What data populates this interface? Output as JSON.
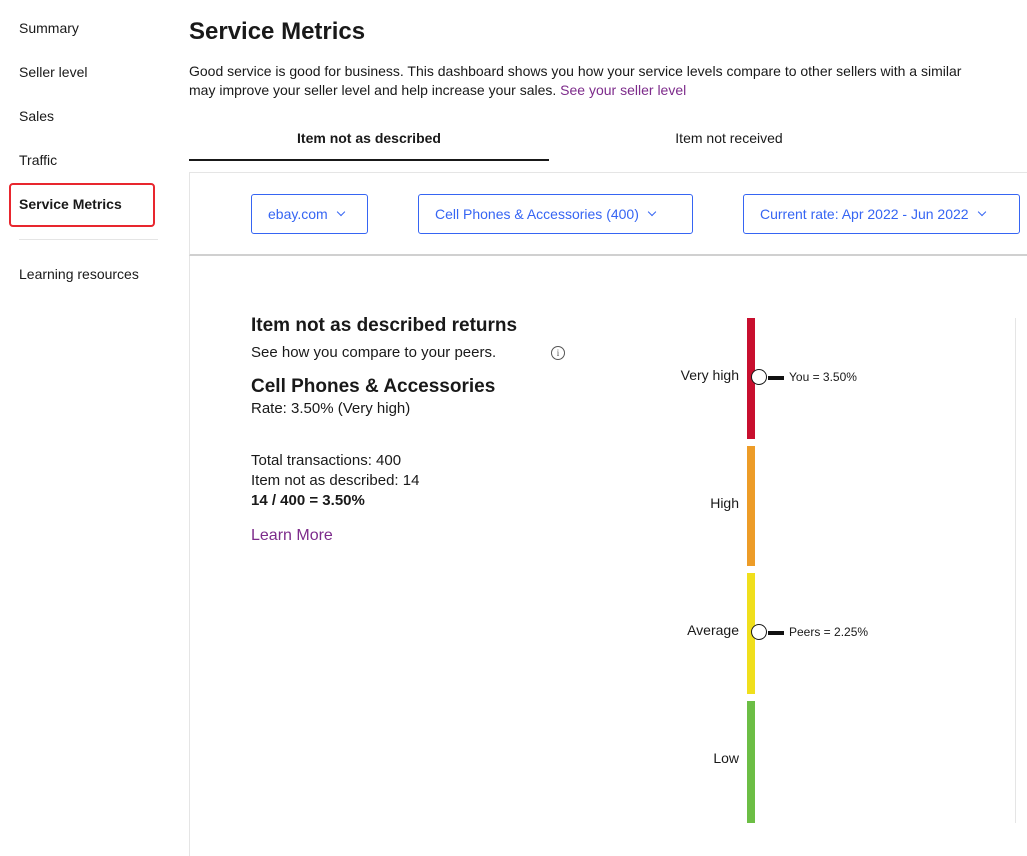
{
  "sidebar": {
    "items": [
      {
        "label": "Summary"
      },
      {
        "label": "Seller level"
      },
      {
        "label": "Sales"
      },
      {
        "label": "Traffic"
      },
      {
        "label": "Service Metrics",
        "active": true
      },
      {
        "label": "Learning resources"
      }
    ]
  },
  "header": {
    "title": "Service Metrics",
    "intro_line1": "Good service is good for business. This dashboard shows you how your service levels compare to other sellers with a similar",
    "intro_line2": "may improve your seller level and help increase your sales.",
    "intro_link": "See your seller level"
  },
  "tabs": [
    {
      "label": "Item not as described",
      "active": true
    },
    {
      "label": "Item not received",
      "active": false
    }
  ],
  "filters": {
    "site": "ebay.com",
    "category": "Cell Phones & Accessories (400)",
    "period": "Current rate: Apr 2022 - Jun 2022"
  },
  "metric": {
    "title": "Item not as described returns",
    "compare_text": "See how you compare to your peers.",
    "info_icon": "i",
    "category": "Cell Phones & Accessories",
    "rate": "Rate: 3.50% (Very high)",
    "total_transactions": "Total transactions: 400",
    "inad_count": "Item not as described: 14",
    "formula": "14 / 400 = 3.50%",
    "learn_more": "Learn More"
  },
  "levels": [
    {
      "label": "Very high",
      "color": "#c80f2e"
    },
    {
      "label": "High",
      "color": "#ed9c28"
    },
    {
      "label": "Average",
      "color": "#f0df1c"
    },
    {
      "label": "Low",
      "color": "#6cbe45"
    }
  ],
  "markers": {
    "you": "You = 3.50%",
    "peers": "Peers = 2.25%"
  },
  "colors": {
    "link_blue": "#3665f3",
    "link_purple": "#7d2b8b",
    "highlight_red": "#e8262e"
  }
}
